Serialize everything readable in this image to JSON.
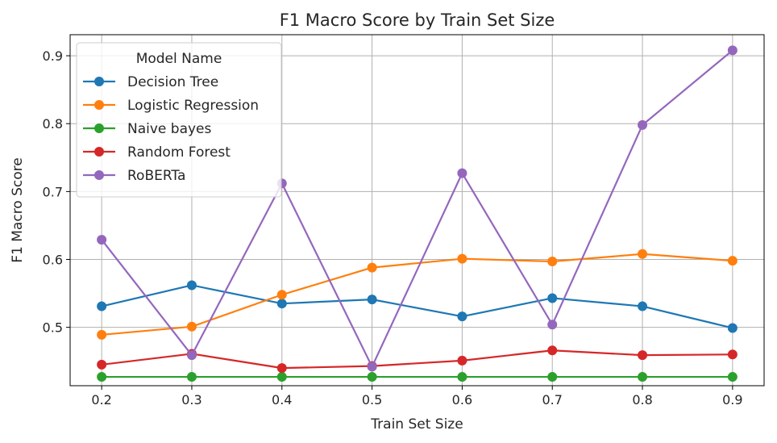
{
  "chart_data": {
    "type": "line",
    "title": "F1 Macro Score by Train Set Size",
    "xlabel": "Train Set Size",
    "ylabel": "F1 Macro Score",
    "x": [
      0.2,
      0.3,
      0.4,
      0.5,
      0.6,
      0.7,
      0.8,
      0.9
    ],
    "x_ticks": [
      "0.2",
      "0.3",
      "0.4",
      "0.5",
      "0.6",
      "0.7",
      "0.8",
      "0.9"
    ],
    "y_ticks": [
      "0.5",
      "0.6",
      "0.7",
      "0.8",
      "0.9"
    ],
    "xlim": [
      0.165,
      0.935
    ],
    "ylim": [
      0.414,
      0.931
    ],
    "grid": true,
    "legend": {
      "title": "Model Name",
      "placement": "top-left"
    },
    "series": [
      {
        "name": "Decision Tree",
        "color": "#1f77b4",
        "values": [
          0.531,
          0.562,
          0.535,
          0.541,
          0.516,
          0.543,
          0.531,
          0.499
        ]
      },
      {
        "name": "Logistic Regression",
        "color": "#ff7f0e",
        "values": [
          0.489,
          0.501,
          0.548,
          0.588,
          0.601,
          0.597,
          0.608,
          0.598
        ]
      },
      {
        "name": "Naive bayes",
        "color": "#2ca02c",
        "values": [
          0.427,
          0.427,
          0.427,
          0.427,
          0.427,
          0.427,
          0.427,
          0.427
        ]
      },
      {
        "name": "Random Forest",
        "color": "#d62728",
        "values": [
          0.445,
          0.461,
          0.44,
          0.443,
          0.451,
          0.466,
          0.459,
          0.46
        ]
      },
      {
        "name": "RoBERTa",
        "color": "#9467bd",
        "values": [
          0.629,
          0.459,
          0.712,
          0.442,
          0.727,
          0.504,
          0.798,
          0.908
        ]
      }
    ]
  }
}
